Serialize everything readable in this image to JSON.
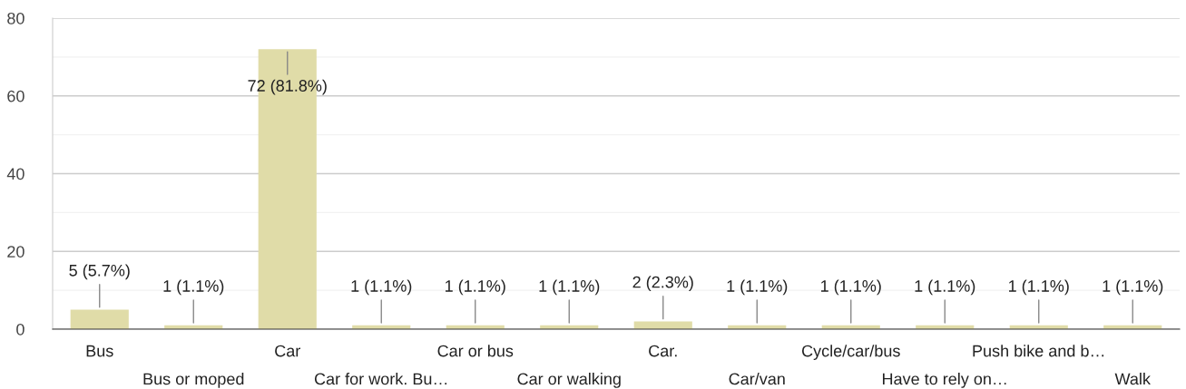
{
  "chart_data": {
    "type": "bar",
    "categories": [
      "Bus",
      "Bus or moped",
      "Car",
      "Car for work. Bu…",
      "Car or bus",
      "Car or walking",
      "Car.",
      "Car/van",
      "Cycle/car/bus",
      "Have to rely on…",
      "Push bike and b…",
      "Walk"
    ],
    "values": [
      5,
      1,
      72,
      1,
      1,
      1,
      2,
      1,
      1,
      1,
      1,
      1
    ],
    "value_labels": [
      "5 (5.7%)",
      "1 (1.1%)",
      "72 (81.8%)",
      "1 (1.1%)",
      "1 (1.1%)",
      "1 (1.1%)",
      "2 (2.3%)",
      "1 (1.1%)",
      "1 (1.1%)",
      "1 (1.1%)",
      "1 (1.1%)",
      "1 (1.1%)"
    ],
    "color": "#e0dca8",
    "ylim": [
      0,
      80
    ],
    "yticks": [
      0,
      {
        "value": 10,
        "label": null
      },
      20,
      {
        "value": 30,
        "label": null
      },
      40,
      {
        "value": 50,
        "label": null
      },
      60,
      {
        "value": 70,
        "label": null
      },
      80
    ],
    "grid": "y"
  }
}
